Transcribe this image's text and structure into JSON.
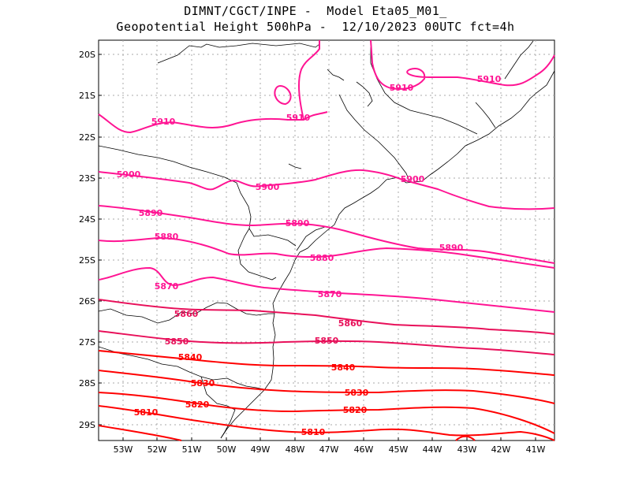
{
  "title_line1": "DIMNT/CGCT/INPE -  Model Eta05_M01_",
  "title_line2": "Geopotential Height 500hPa -  12/10/2023 00UTC fct=4h",
  "lat_ticks": [
    "20S",
    "21S",
    "22S",
    "23S",
    "24S",
    "25S",
    "26S",
    "27S",
    "28S",
    "29S"
  ],
  "lon_ticks": [
    "53W",
    "52W",
    "51W",
    "50W",
    "49W",
    "48W",
    "47W",
    "46W",
    "45W",
    "44W",
    "43W",
    "42W",
    "41W"
  ],
  "colors": {
    "magenta": "#ff1493",
    "deep_pink": "#e8105a",
    "red": "#ff0000",
    "coast": "#000000",
    "grid": "#a8a8a8"
  },
  "contour_labels": [
    {
      "text": "5910"
    },
    {
      "text": "5910"
    },
    {
      "text": "5910"
    },
    {
      "text": "5910"
    },
    {
      "text": "5900"
    },
    {
      "text": "5900"
    },
    {
      "text": "5900"
    },
    {
      "text": "5890"
    },
    {
      "text": "5890"
    },
    {
      "text": "5890"
    },
    {
      "text": "5880"
    },
    {
      "text": "5880"
    },
    {
      "text": "5870"
    },
    {
      "text": "5870"
    },
    {
      "text": "5860"
    },
    {
      "text": "5860"
    },
    {
      "text": "5850"
    },
    {
      "text": "5850"
    },
    {
      "text": "5840"
    },
    {
      "text": "5840"
    },
    {
      "text": "5830"
    },
    {
      "text": "5830"
    },
    {
      "text": "5820"
    },
    {
      "text": "5820"
    },
    {
      "text": "5810"
    },
    {
      "text": "5810"
    }
  ]
}
